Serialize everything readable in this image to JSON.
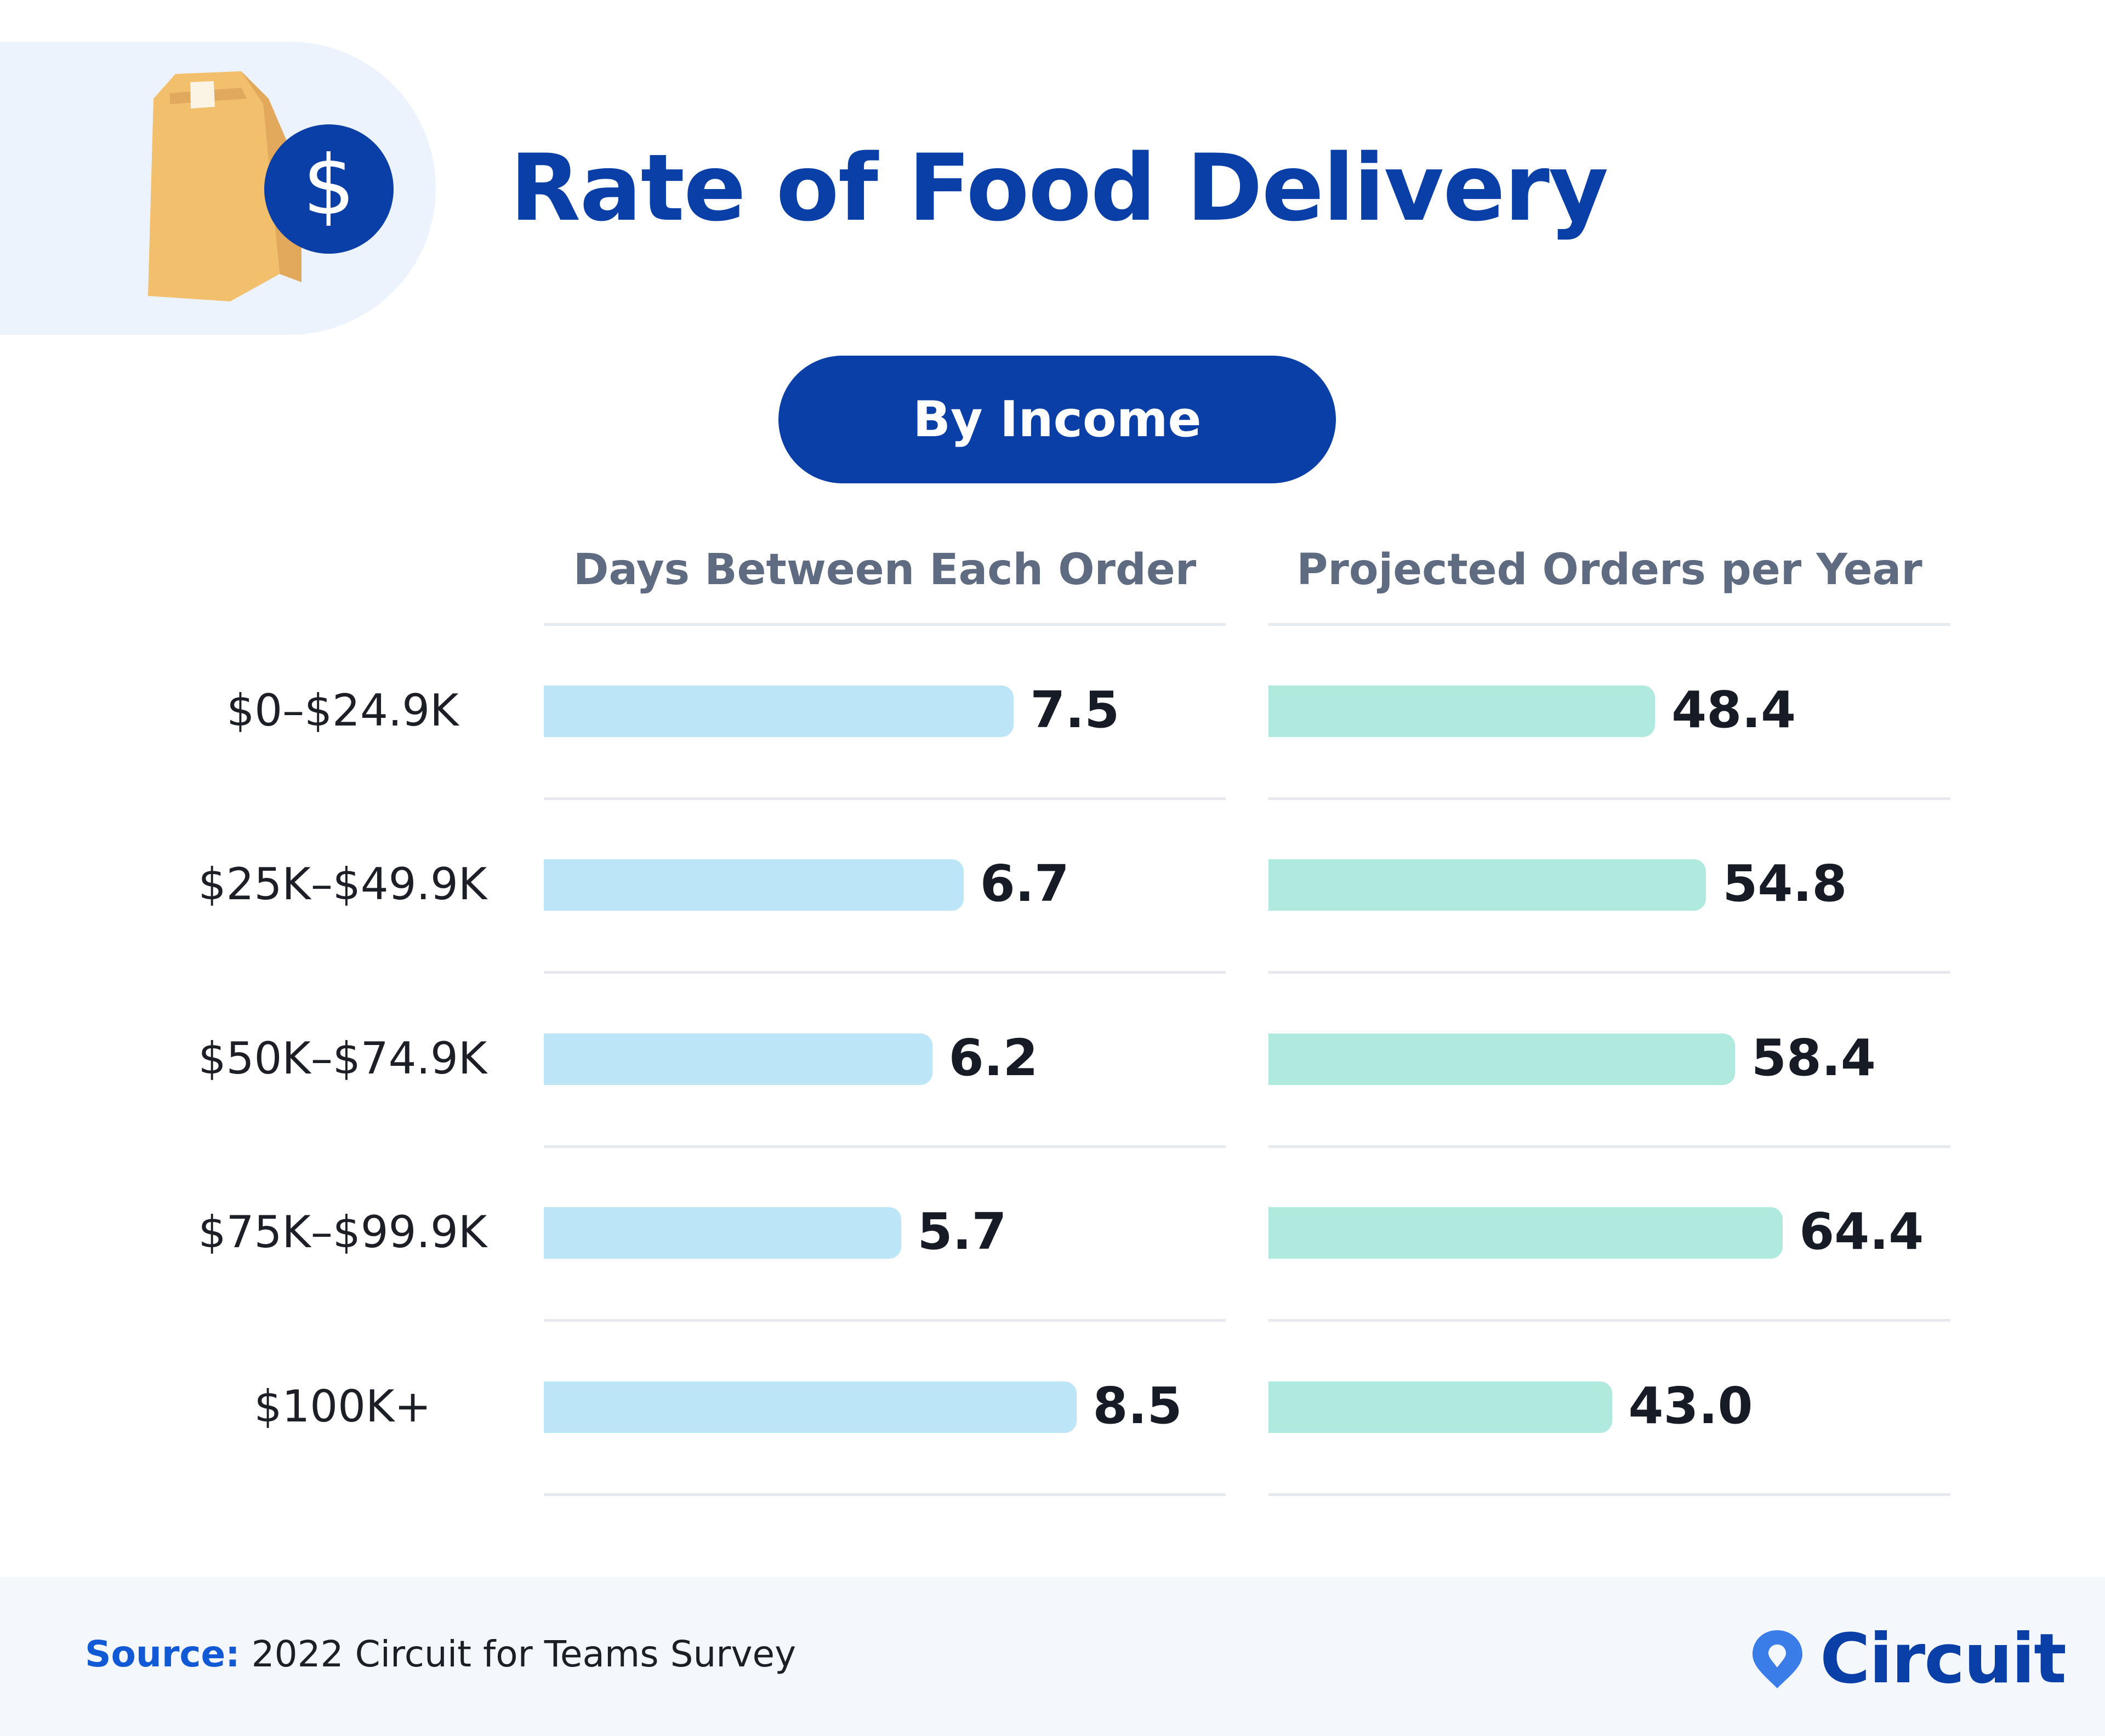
{
  "header": {
    "title": "Rate of Food Delivery",
    "subtitle_pill": "By Income",
    "icon": "paper-bag-with-dollar-coin-icon"
  },
  "colors": {
    "brand": "#0a3fa8",
    "days_bar": "#bde5f8",
    "orders_bar": "#b0e9dd"
  },
  "chart_data": {
    "type": "bar",
    "orientation": "horizontal",
    "categories": [
      "$0–$24.9K",
      "$25K–$49.9K",
      "$50K–$74.9K",
      "$75K–$99.9K",
      "$100K+"
    ],
    "series": [
      {
        "name": "Days Between Each Order",
        "values": [
          7.5,
          6.7,
          6.2,
          5.7,
          8.5
        ],
        "labels": [
          "7.5",
          "6.7",
          "6.2",
          "5.7",
          "8.5"
        ]
      },
      {
        "name": "Projected Orders per Year",
        "values": [
          48.4,
          54.8,
          58.4,
          64.4,
          43.0
        ],
        "labels": [
          "48.4",
          "54.8",
          "58.4",
          "64.4",
          "43.0"
        ]
      }
    ],
    "title": "Rate of Food Delivery",
    "subtitle": "By Income",
    "grid": false,
    "legend": "none"
  },
  "footer": {
    "source_label": "Source:",
    "source_text": " 2022 Circuit for Teams Survey",
    "brand": "Circuit"
  }
}
